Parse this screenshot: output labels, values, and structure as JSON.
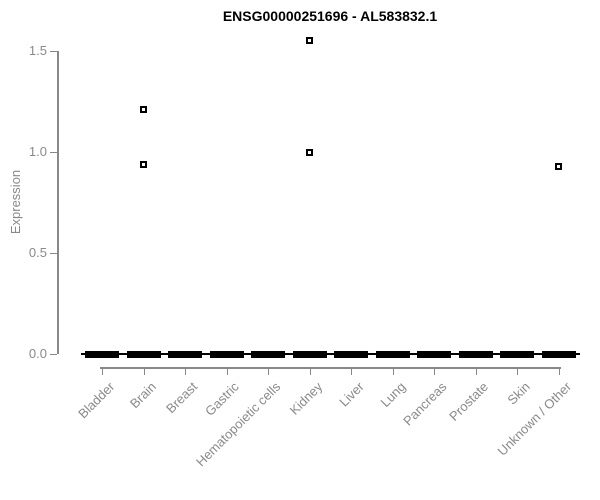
{
  "chart_data": {
    "type": "boxplot",
    "title": "ENSG00000251696 - AL583832.1",
    "ylabel": "Expression",
    "xlabel": "",
    "ylim": [
      0,
      1.5
    ],
    "yticks": [
      0,
      0.5,
      1,
      1.5
    ],
    "ytick_labels": [
      "0.0",
      "0.5",
      "1.0",
      "1.5"
    ],
    "grid": false,
    "legend": false,
    "categories": [
      "Bladder",
      "Brain",
      "Breast",
      "Gastric",
      "Hematopoietic cells",
      "Kidney",
      "Liver",
      "Lung",
      "Pancreas",
      "Prostate",
      "Skin",
      "Unknown / Other"
    ],
    "boxes": [
      {
        "category": "Bladder",
        "whisker_low": 0,
        "q1": 0,
        "median": 0,
        "q3": 0,
        "whisker_high": 0,
        "outliers": []
      },
      {
        "category": "Brain",
        "whisker_low": 0,
        "q1": 0,
        "median": 0,
        "q3": 0,
        "whisker_high": 0,
        "outliers": [
          1.21,
          0.94
        ]
      },
      {
        "category": "Breast",
        "whisker_low": 0,
        "q1": 0,
        "median": 0,
        "q3": 0,
        "whisker_high": 0,
        "outliers": []
      },
      {
        "category": "Gastric",
        "whisker_low": 0,
        "q1": 0,
        "median": 0,
        "q3": 0,
        "whisker_high": 0,
        "outliers": []
      },
      {
        "category": "Hematopoietic cells",
        "whisker_low": 0,
        "q1": 0,
        "median": 0,
        "q3": 0,
        "whisker_high": 0,
        "outliers": []
      },
      {
        "category": "Kidney",
        "whisker_low": 0,
        "q1": 0,
        "median": 0,
        "q3": 0,
        "whisker_high": 0,
        "outliers": [
          1.55,
          1.0
        ]
      },
      {
        "category": "Liver",
        "whisker_low": 0,
        "q1": 0,
        "median": 0,
        "q3": 0,
        "whisker_high": 0,
        "outliers": []
      },
      {
        "category": "Lung",
        "whisker_low": 0,
        "q1": 0,
        "median": 0,
        "q3": 0,
        "whisker_high": 0,
        "outliers": []
      },
      {
        "category": "Pancreas",
        "whisker_low": 0,
        "q1": 0,
        "median": 0,
        "q3": 0,
        "whisker_high": 0,
        "outliers": []
      },
      {
        "category": "Prostate",
        "whisker_low": 0,
        "q1": 0,
        "median": 0,
        "q3": 0,
        "whisker_high": 0,
        "outliers": []
      },
      {
        "category": "Skin",
        "whisker_low": 0,
        "q1": 0,
        "median": 0,
        "q3": 0,
        "whisker_high": 0,
        "outliers": []
      },
      {
        "category": "Unknown / Other",
        "whisker_low": 0,
        "q1": 0,
        "median": 0,
        "q3": 0,
        "whisker_high": 0,
        "outliers": [
          0.93
        ]
      }
    ],
    "colors": {
      "box": "#000000",
      "axis": "#888888",
      "muted_text": "#8a8a8a",
      "title_text": "#000000",
      "background": "#ffffff",
      "outlier_fill": "#ffffff"
    }
  }
}
